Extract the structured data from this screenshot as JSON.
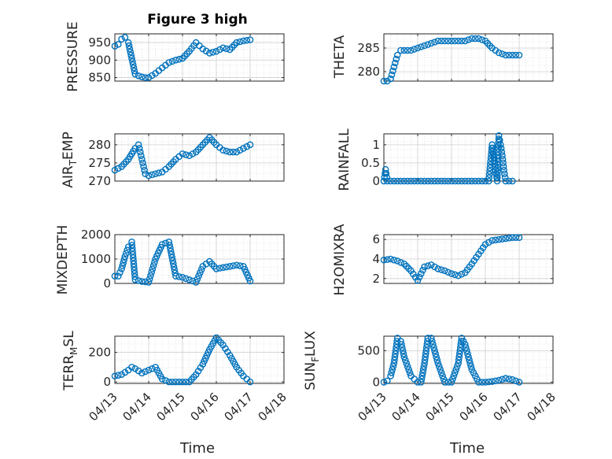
{
  "figure_title": "Figure 3 high",
  "marker_color": "#0072BD",
  "grid": true,
  "chart_data": [
    {
      "type": "scatter",
      "ylabel": "PRESSURE",
      "ylim": [
        840,
        975
      ],
      "yticks": [
        "850",
        "900",
        "950"
      ],
      "ytick_values": [
        850,
        900,
        950
      ],
      "xlim": [
        0,
        5
      ],
      "x": [
        0,
        0.1,
        0.2,
        0.3,
        0.4,
        0.5,
        0.6,
        0.7,
        0.8,
        0.9,
        1.0,
        1.2,
        1.4,
        1.6,
        1.8,
        2.0,
        2.2,
        2.4,
        2.6,
        2.8,
        3.0,
        3.2,
        3.4,
        3.6,
        3.8,
        4.0
      ],
      "y": [
        940,
        945,
        960,
        965,
        950,
        905,
        860,
        855,
        852,
        850,
        850,
        862,
        878,
        893,
        900,
        905,
        925,
        950,
        932,
        920,
        925,
        935,
        930,
        950,
        955,
        958
      ]
    },
    {
      "type": "scatter",
      "ylabel": "THETA",
      "ylim": [
        278,
        288
      ],
      "yticks": [
        "280",
        "285"
      ],
      "ytick_values": [
        280,
        285
      ],
      "xlim": [
        0,
        5
      ],
      "x": [
        0,
        0.1,
        0.2,
        0.3,
        0.4,
        0.5,
        0.6,
        0.7,
        0.8,
        1.0,
        1.2,
        1.4,
        1.6,
        1.8,
        2.0,
        2.2,
        2.4,
        2.6,
        2.8,
        3.0,
        3.2,
        3.4,
        3.6,
        3.8,
        4.0
      ],
      "y": [
        278,
        278,
        278.5,
        281,
        283.5,
        284.5,
        284.5,
        284.5,
        284.5,
        285,
        285.5,
        286,
        286.5,
        286.5,
        286.5,
        286.5,
        286.5,
        287,
        287,
        286.5,
        285,
        284,
        283.5,
        283.5,
        283.5
      ]
    },
    {
      "type": "scatter",
      "ylabel": "AIR_TEMP",
      "ylim": [
        270,
        283
      ],
      "yticks": [
        "270",
        "275",
        "280"
      ],
      "ytick_values": [
        270,
        275,
        280
      ],
      "xlim": [
        0,
        5
      ],
      "x": [
        0,
        0.2,
        0.4,
        0.6,
        0.7,
        0.8,
        0.9,
        1.0,
        1.2,
        1.4,
        1.6,
        1.8,
        2.0,
        2.2,
        2.4,
        2.6,
        2.8,
        3.0,
        3.2,
        3.4,
        3.6,
        3.8,
        4.0
      ],
      "y": [
        273,
        274,
        276,
        279,
        280,
        276,
        272,
        271.5,
        272,
        272.5,
        274,
        276,
        277.5,
        277,
        278,
        280,
        282,
        280,
        278.5,
        278,
        278,
        279,
        280
      ]
    },
    {
      "type": "scatter",
      "ylabel": "RAINFALL",
      "ylim": [
        0,
        1.3
      ],
      "yticks": [
        "0",
        "0.5",
        "1"
      ],
      "ytick_values": [
        0,
        0.5,
        1
      ],
      "xlim": [
        0,
        5
      ],
      "x": [
        0,
        0.05,
        0.1,
        0.2,
        0.3,
        0.4,
        0.5,
        0.6,
        0.7,
        0.8,
        0.9,
        1.0,
        1.2,
        1.4,
        1.6,
        1.8,
        2.0,
        2.2,
        2.4,
        2.6,
        2.8,
        3.0,
        3.1,
        3.2,
        3.3,
        3.35,
        3.4,
        3.45,
        3.5,
        3.55,
        3.6,
        3.7,
        3.8
      ],
      "y": [
        0,
        0.32,
        0,
        0,
        0,
        0,
        0,
        0,
        0,
        0,
        0,
        0,
        0,
        0,
        0,
        0,
        0,
        0,
        0,
        0,
        0,
        0,
        0,
        1.0,
        0.3,
        0,
        1.25,
        1.0,
        0.7,
        0.3,
        0,
        0,
        0
      ]
    },
    {
      "type": "scatter",
      "ylabel": "MIXDEPTH",
      "ylim": [
        0,
        2000
      ],
      "yticks": [
        "0",
        "1000",
        "2000"
      ],
      "ytick_values": [
        0,
        1000,
        2000
      ],
      "xlim": [
        0,
        5
      ],
      "x": [
        0,
        0.1,
        0.2,
        0.3,
        0.4,
        0.5,
        0.6,
        0.8,
        1.0,
        1.2,
        1.4,
        1.6,
        1.8,
        2.0,
        2.2,
        2.4,
        2.6,
        2.8,
        3.0,
        3.2,
        3.4,
        3.6,
        3.8,
        4.0
      ],
      "y": [
        300,
        300,
        600,
        1100,
        1500,
        1700,
        150,
        80,
        50,
        1000,
        1600,
        1700,
        300,
        250,
        150,
        50,
        700,
        900,
        600,
        650,
        700,
        750,
        700,
        100
      ]
    },
    {
      "type": "scatter",
      "ylabel": "H2OMIXRA",
      "ylim": [
        1.5,
        6.5
      ],
      "yticks": [
        "2",
        "4",
        "6"
      ],
      "ytick_values": [
        2,
        4,
        6
      ],
      "xlim": [
        0,
        5
      ],
      "x": [
        0,
        0.2,
        0.4,
        0.6,
        0.8,
        1.0,
        1.2,
        1.4,
        1.6,
        1.8,
        2.0,
        2.2,
        2.4,
        2.6,
        2.8,
        3.0,
        3.2,
        3.4,
        3.6,
        3.8,
        4.0
      ],
      "y": [
        3.9,
        4.0,
        3.8,
        3.5,
        2.8,
        1.8,
        3.2,
        3.4,
        3.0,
        2.8,
        2.5,
        2.3,
        2.6,
        3.5,
        4.5,
        5.5,
        5.9,
        6.0,
        6.1,
        6.2,
        6.2
      ]
    },
    {
      "type": "scatter",
      "ylabel": "TERR_MSL",
      "ylim": [
        -10,
        310
      ],
      "yticks": [
        "0",
        "200"
      ],
      "ytick_values": [
        0,
        200
      ],
      "xlim": [
        0,
        5
      ],
      "x": [
        0,
        0.2,
        0.4,
        0.5,
        0.6,
        0.8,
        1.0,
        1.2,
        1.4,
        1.6,
        1.8,
        2.0,
        2.2,
        2.4,
        2.6,
        2.8,
        3.0,
        3.2,
        3.4,
        3.6,
        3.8,
        4.0
      ],
      "y": [
        40,
        50,
        80,
        100,
        90,
        60,
        80,
        100,
        20,
        0,
        0,
        0,
        0,
        50,
        120,
        220,
        300,
        250,
        180,
        100,
        40,
        0
      ]
    },
    {
      "type": "scatter",
      "ylabel": "SUN_FLUX",
      "ylim": [
        -20,
        730
      ],
      "yticks": [
        "0",
        "500"
      ],
      "ytick_values": [
        0,
        500
      ],
      "xlim": [
        0,
        5
      ],
      "x": [
        0,
        0.1,
        0.2,
        0.3,
        0.4,
        0.5,
        0.6,
        0.8,
        1.0,
        1.1,
        1.2,
        1.3,
        1.4,
        1.6,
        1.8,
        2.0,
        2.2,
        2.3,
        2.4,
        2.6,
        2.8,
        3.0,
        3.2,
        3.4,
        3.6,
        3.8,
        4.0
      ],
      "y": [
        0,
        20,
        100,
        300,
        700,
        650,
        400,
        100,
        0,
        0,
        300,
        700,
        700,
        300,
        0,
        0,
        300,
        700,
        600,
        200,
        0,
        0,
        10,
        30,
        60,
        40,
        0
      ]
    }
  ],
  "x_ticklabels": [
    "04/13",
    "04/14",
    "04/15",
    "04/16",
    "04/17",
    "04/18"
  ],
  "xlabel": "Time"
}
